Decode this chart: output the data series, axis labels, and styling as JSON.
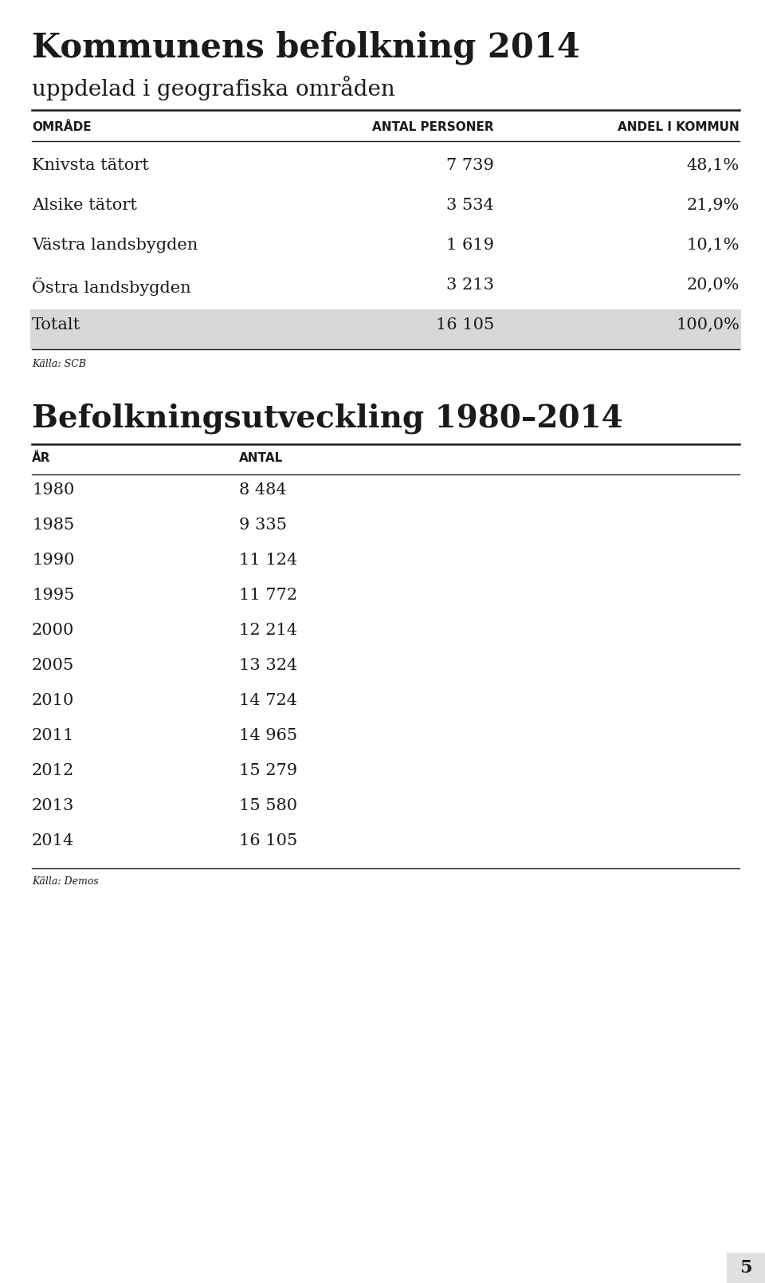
{
  "title": "Kommunens befolkning 2014",
  "subtitle": "uppdelad i geografiska områden",
  "table1_headers": [
    "OMRÅDE",
    "ANTAL PERSONER",
    "ANDEL I KOMMUN"
  ],
  "table1_rows": [
    [
      "Knivsta tätort",
      "7 739",
      "48,1%"
    ],
    [
      "Alsike tätort",
      "3 534",
      "21,9%"
    ],
    [
      "Västra landsbygden",
      "1 619",
      "10,1%"
    ],
    [
      "Östra landsbygden",
      "3 213",
      "20,0%"
    ],
    [
      "Totalt",
      "16 105",
      "100,0%"
    ]
  ],
  "table1_source": "Källa: SCB",
  "table2_title": "Befolkningsutveckling 1980–2014",
  "table2_headers": [
    "ÅR",
    "ANTAL"
  ],
  "table2_rows": [
    [
      "1980",
      "8 484"
    ],
    [
      "1985",
      "9 335"
    ],
    [
      "1990",
      "11 124"
    ],
    [
      "1995",
      "11 772"
    ],
    [
      "2000",
      "12 214"
    ],
    [
      "2005",
      "13 324"
    ],
    [
      "2010",
      "14 724"
    ],
    [
      "2011",
      "14 965"
    ],
    [
      "2012",
      "15 279"
    ],
    [
      "2013",
      "15 580"
    ],
    [
      "2014",
      "16 105"
    ]
  ],
  "table2_source": "Källa: Demos",
  "page_number": "5",
  "bg_color": "#ffffff",
  "totalt_bg": "#d8d8d8",
  "text_color": "#1a1a1a"
}
